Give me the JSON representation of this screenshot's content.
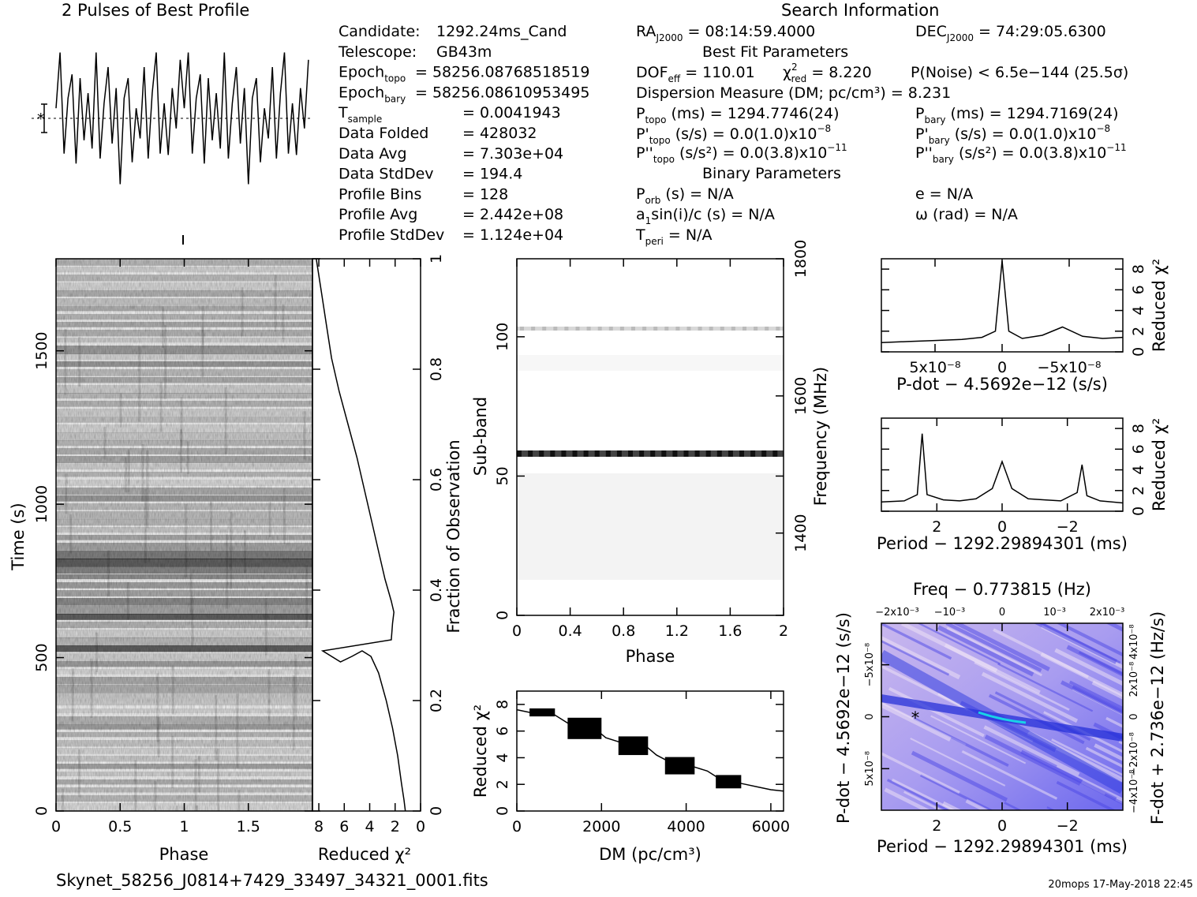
{
  "header": {
    "profile_title": "2 Pulses of Best Profile",
    "search_title": "Search Information",
    "filename": "Skynet_58256_J0814+7429_33497_34321_0001.fits",
    "footer": "20mops 17-May-2018 22:45"
  },
  "info": {
    "col1": [
      {
        "k": "Candidate:",
        "v": "1292.24ms_Cand"
      },
      {
        "k": "Telescope:",
        "v": "GB43m"
      },
      {
        "k": "Epoch",
        "sub": "topo",
        "v": "= 58256.08768518519"
      },
      {
        "k": "Epoch",
        "sub": "bary",
        "v": "= 58256.08610953495"
      },
      {
        "k": "T",
        "sub": "sample",
        "v": "=   0.0041943"
      },
      {
        "k": "Data Folded",
        "v": "=   428032"
      },
      {
        "k": "Data Avg",
        "v": "=   7.303e+04"
      },
      {
        "k": "Data StdDev",
        "v": "=   194.4"
      },
      {
        "k": "Profile Bins",
        "v": "=   128"
      },
      {
        "k": "Profile Avg",
        "v": "=   2.442e+08"
      },
      {
        "k": "Profile StdDev",
        "v": "=   1.124e+04"
      }
    ],
    "ra": {
      "k": "RA",
      "sub": "J2000",
      "v": " = 08:14:59.4000"
    },
    "dec": {
      "k": "DEC",
      "sub": "J2000",
      "v": " = 74:29:05.6300"
    },
    "best_fit_title": "Best Fit Parameters",
    "dof": {
      "k": "DOF",
      "sub": "eff",
      "v": " = 110.01"
    },
    "chi": {
      "k": "χ",
      "sup": "2",
      "sub": "red",
      "v": " = 8.220"
    },
    "pnoise": "P(Noise) < 6.5e−144   (25.5σ)",
    "dm_line": "Dispersion Measure (DM; pc/cm³) = 8.231",
    "ptopo": {
      "k": "P",
      "sub": "topo",
      "v": " (ms) =  1294.7746(24)"
    },
    "pbary": {
      "k": "P",
      "sub": "bary",
      "v": " (ms) =  1294.7169(24)"
    },
    "pdtopo": {
      "k": "P'",
      "sub": "topo",
      "v": " (s/s) = 0.0(1.0)x10",
      "exp": "−8"
    },
    "pdbary": {
      "k": "P'",
      "sub": "bary",
      "v": " (s/s) = 0.0(1.0)x10",
      "exp": "−8"
    },
    "pddtopo": {
      "k": "P''",
      "sub": "topo",
      "v": " (s/s²) = 0.0(3.8)x10",
      "exp": "−11"
    },
    "pddbary": {
      "k": "P''",
      "sub": "bary",
      "v": " (s/s²) = 0.0(3.8)x10",
      "exp": "−11"
    },
    "binary_title": "Binary Parameters",
    "porb": {
      "k": "P",
      "sub": "orb",
      "v": " (s) = N/A"
    },
    "asini": {
      "k": "a",
      "sub": "1",
      "v": "sin(i)/c (s) = N/A"
    },
    "tperi": {
      "k": "T",
      "sub": "peri",
      "v": " = N/A"
    },
    "ecc": "e = N/A",
    "omega": "ω (rad) = N/A"
  },
  "time_phase": {
    "ylabel": "Time (s)",
    "xlabel": "Phase",
    "yticks": [
      "0",
      "500",
      "1000",
      "1500"
    ],
    "xticks": [
      "0",
      "0.5",
      "1",
      "1.5"
    ]
  },
  "chi_time": {
    "xlabel": "Reduced χ²",
    "ylabel": "Fraction of Observation",
    "xticks": [
      "8",
      "6",
      "4",
      "2",
      "0"
    ],
    "yticks": [
      "0",
      "0.2",
      "0.4",
      "0.6",
      "0.8",
      "1"
    ]
  },
  "subband": {
    "xlabel": "Phase",
    "ylabel": "Sub-band",
    "y2label": "Frequency (MHz)",
    "xticks": [
      "0",
      "0.4",
      "0.8",
      "1.2",
      "1.6",
      "2"
    ],
    "yticks": [
      "0",
      "50",
      "100"
    ],
    "y2ticks": [
      "1400",
      "1600",
      "1800"
    ]
  },
  "dm_plot": {
    "xlabel": "DM (pc/cm³)",
    "ylabel": "Reduced χ²",
    "xticks": [
      "0",
      "2000",
      "4000",
      "6000"
    ],
    "yticks": [
      "0",
      "2",
      "4",
      "6",
      "8"
    ]
  },
  "pdot_plot": {
    "xlabel": "P-dot − 4.5692e−12 (s/s)",
    "ylabel": "Reduced χ²",
    "xticks": [
      "5x10⁻⁸",
      "0",
      "−5x10⁻⁸"
    ],
    "yticks": [
      "0",
      "2",
      "4",
      "6",
      "8"
    ]
  },
  "period_plot": {
    "xlabel": "Period − 1292.29894301 (ms)",
    "ylabel": "Reduced χ²",
    "xticks": [
      "2",
      "0",
      "−2"
    ],
    "yticks": [
      "0",
      "2",
      "4",
      "6",
      "8"
    ]
  },
  "pp_plane": {
    "toplabel": "Freq − 0.773815 (Hz)",
    "topticks": [
      "−2x10⁻³",
      "−10⁻³",
      "0",
      "10⁻³",
      "2x10⁻³"
    ],
    "xlabel": "Period − 1292.29894301 (ms)",
    "xticks": [
      "2",
      "0",
      "−2"
    ],
    "ylabel": "P-dot − 4.5692e−12 (s/s)",
    "yticks": [
      "−5x10⁻⁸",
      "0",
      "5x10⁻⁸"
    ],
    "y2label": "F-dot + 2.736e−12 (Hz/s)",
    "y2ticks": [
      "4x10⁻⁸",
      "2x10⁻⁸",
      "0",
      "−2x10⁻⁸",
      "−4x10⁻⁸"
    ]
  },
  "chart_data": [
    {
      "type": "line",
      "name": "profile",
      "title": "2 Pulses of Best Profile",
      "xlim": [
        0,
        2
      ]
    },
    {
      "type": "heatmap",
      "name": "time-vs-phase",
      "xlabel": "Phase",
      "ylabel": "Time (s)",
      "xlim": [
        0,
        2
      ],
      "ylim": [
        0,
        1800
      ]
    },
    {
      "type": "line",
      "name": "chi-vs-time",
      "xlabel": "Reduced χ²",
      "ylabel": "Fraction of Observation",
      "xlim": [
        8,
        0
      ],
      "ylim": [
        0,
        1
      ],
      "x": [
        1.2,
        1.3,
        1.5,
        1.8,
        2.2,
        2.7,
        3.3,
        3.9,
        4.6,
        5.4,
        6.3,
        7.7,
        2.3,
        2.2,
        2.1,
        2.3,
        2.8,
        3.3,
        3.8,
        4.4,
        5.0,
        5.7,
        6.4,
        7.0,
        7.4,
        7.8,
        8.2
      ],
      "y": [
        0.0,
        0.02,
        0.05,
        0.1,
        0.15,
        0.2,
        0.25,
        0.28,
        0.29,
        0.28,
        0.27,
        0.29,
        0.31,
        0.34,
        0.36,
        0.38,
        0.42,
        0.47,
        0.52,
        0.58,
        0.64,
        0.7,
        0.76,
        0.82,
        0.88,
        0.94,
        1.0
      ]
    },
    {
      "type": "heatmap",
      "name": "subband-vs-phase",
      "xlabel": "Phase",
      "ylabel": "Sub-band",
      "xlim": [
        0,
        2
      ],
      "ylim": [
        0,
        128
      ],
      "bright_bands": [
        58,
        102
      ]
    },
    {
      "type": "line",
      "name": "dm-chi",
      "xlabel": "DM (pc/cm³)",
      "ylabel": "Reduced χ²",
      "xlim": [
        0,
        6300
      ],
      "ylim": [
        0,
        9
      ],
      "x": [
        0,
        300,
        600,
        900,
        1200,
        1500,
        1800,
        2100,
        2400,
        2700,
        3000,
        3300,
        3600,
        3900,
        4200,
        4500,
        4800,
        5100,
        5400,
        5700,
        6000,
        6300
      ],
      "y": [
        7.6,
        7.4,
        7.5,
        7.2,
        6.6,
        6.1,
        6.3,
        5.5,
        5.2,
        4.9,
        5.0,
        4.2,
        3.7,
        3.5,
        3.3,
        3.0,
        2.4,
        2.2,
        2.0,
        1.8,
        1.6,
        1.5
      ]
    },
    {
      "type": "line",
      "name": "pdot-chi",
      "xlabel": "P-dot − 4.5692e−12 (s/s)",
      "ylabel": "Reduced χ²",
      "xlim": [
        9e-08,
        -9e-08
      ],
      "ylim": [
        0,
        9
      ],
      "x": [
        9e-08,
        7e-08,
        5e-08,
        3e-08,
        1.5e-08,
        5e-09,
        0,
        -5e-09,
        -1.5e-08,
        -3e-08,
        -4.5e-08,
        -6e-08,
        -7.5e-08,
        -9e-08
      ],
      "y": [
        0.9,
        1.0,
        1.1,
        1.2,
        1.4,
        2.0,
        8.8,
        2.0,
        1.3,
        1.6,
        2.4,
        1.5,
        1.3,
        1.4
      ]
    },
    {
      "type": "line",
      "name": "period-chi",
      "xlabel": "Period − 1292.29894301 (ms)",
      "ylabel": "Reduced χ²",
      "xlim": [
        3.7,
        -3.7
      ],
      "ylim": [
        0,
        9
      ],
      "x": [
        3.7,
        3.0,
        2.6,
        2.45,
        2.3,
        1.8,
        1.3,
        0.8,
        0.3,
        0,
        -0.3,
        -0.8,
        -1.3,
        -1.8,
        -2.3,
        -2.45,
        -2.6,
        -3.0,
        -3.7
      ],
      "y": [
        0.9,
        1.0,
        1.6,
        7.5,
        1.6,
        1.1,
        1.0,
        1.2,
        2.2,
        4.8,
        2.2,
        1.2,
        1.1,
        1.0,
        1.8,
        4.5,
        1.5,
        1.0,
        0.8
      ]
    },
    {
      "type": "heatmap",
      "name": "period-pdot-plane",
      "xlabel": "Period − 1292.29894301 (ms)",
      "ylabel": "P-dot − 4.5692e−12 (s/s)",
      "xlim": [
        3.7,
        -3.7
      ],
      "ylim": [
        9e-08,
        -9e-08
      ]
    }
  ]
}
